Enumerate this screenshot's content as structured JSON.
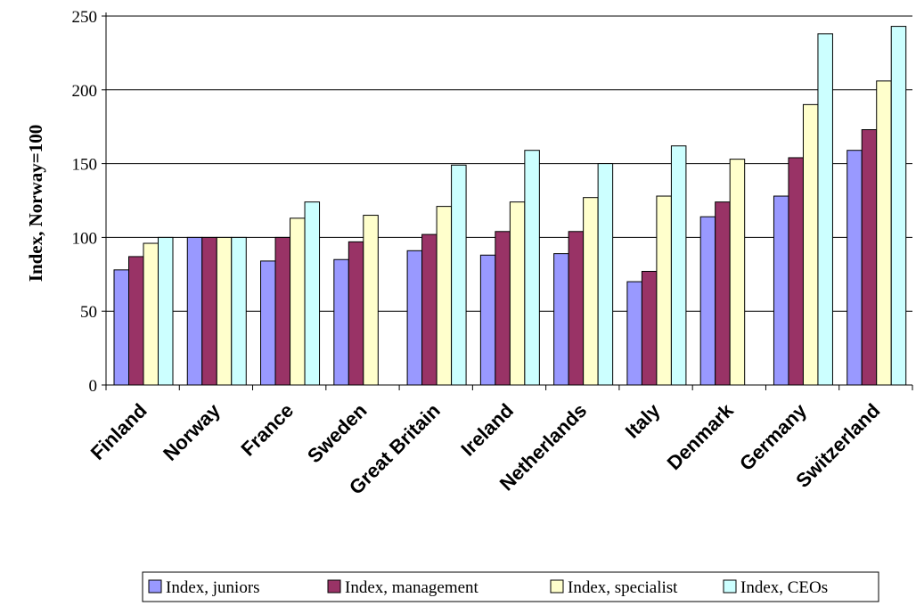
{
  "chart_data": {
    "type": "bar",
    "title": "",
    "xlabel": "",
    "ylabel": "Index, Norway=100",
    "ylim": [
      0,
      250
    ],
    "yticks": [
      0,
      50,
      100,
      150,
      200,
      250
    ],
    "grid": true,
    "legend_position": "bottom",
    "categories": [
      "Finland",
      "Norway",
      "France",
      "Sweden",
      "Great Britain",
      "Ireland",
      "Netherlands",
      "Italy",
      "Denmark",
      "Germany",
      "Switzerland"
    ],
    "series": [
      {
        "name": "Index, juniors",
        "color": "#9999ff",
        "values": [
          78,
          100,
          84,
          85,
          91,
          88,
          89,
          70,
          114,
          128,
          159
        ]
      },
      {
        "name": "Index, management",
        "color": "#993366",
        "values": [
          87,
          100,
          100,
          97,
          102,
          104,
          104,
          77,
          124,
          154,
          173
        ]
      },
      {
        "name": "Index, specialist",
        "color": "#ffffcc",
        "values": [
          96,
          100,
          113,
          115,
          121,
          124,
          127,
          128,
          153,
          190,
          206
        ]
      },
      {
        "name": "Index, CEOs",
        "color": "#ccffff",
        "values": [
          100,
          100,
          124,
          null,
          149,
          159,
          150,
          162,
          null,
          238,
          243
        ]
      }
    ]
  }
}
